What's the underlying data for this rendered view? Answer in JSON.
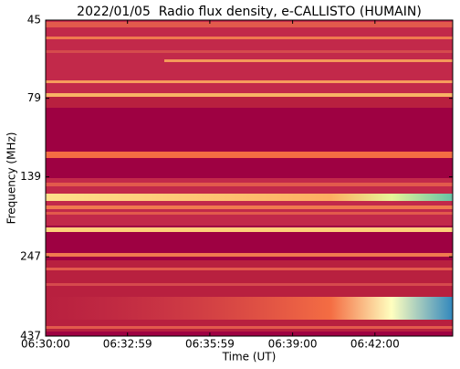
{
  "chart_data": {
    "type": "spectrogram",
    "title": "2022/01/05  Radio flux density, e-CALLISTO (HUMAIN)",
    "xlabel": "Time (UT)",
    "ylabel": "Frequency (MHz)",
    "xlim": [
      23400,
      24290
    ],
    "xticks": [
      {
        "value": 23400,
        "label": "06:30:00"
      },
      {
        "value": 23579,
        "label": "06:32:59"
      },
      {
        "value": 23759,
        "label": "06:35:59"
      },
      {
        "value": 23940,
        "label": "06:39:00"
      },
      {
        "value": 24120,
        "label": "06:42:00"
      }
    ],
    "ylim": [
      45,
      437
    ],
    "yticks": [
      45,
      79,
      139,
      247,
      437
    ],
    "yscale": "log",
    "y_inverted": true
  }
}
